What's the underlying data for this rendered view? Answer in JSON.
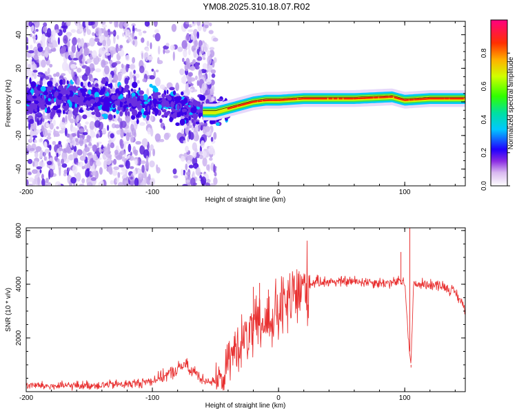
{
  "title": "YM08.2025.310.18.07.R02",
  "chart_data": [
    {
      "type": "heatmap",
      "name": "spectrogram",
      "xlabel": "Height of straight line (km)",
      "ylabel": "Frequency (Hz)",
      "xlim": [
        -200,
        148
      ],
      "ylim": [
        -50,
        48
      ],
      "xticks": [
        "-200",
        "-100",
        "0",
        "100"
      ],
      "yticks": [
        "-40",
        "-20",
        "0",
        "20",
        "40"
      ],
      "xtick_values": [
        -200,
        -100,
        0,
        100
      ],
      "ytick_values": [
        -40,
        -20,
        0,
        20,
        40
      ],
      "colorbar": {
        "label": "Normalized spectral amplitude",
        "range": [
          0,
          1
        ],
        "ticks": [
          "0.0",
          "0.2",
          "0.4",
          "0.6",
          "0.8"
        ],
        "tick_values": [
          0.0,
          0.2,
          0.4,
          0.6,
          0.8
        ]
      },
      "ridge": [
        {
          "x": -200,
          "f": 3
        },
        {
          "x": -150,
          "f": 2
        },
        {
          "x": -120,
          "f": 0
        },
        {
          "x": -90,
          "f": -1
        },
        {
          "x": -75,
          "f": -4
        },
        {
          "x": -60,
          "f": -6
        },
        {
          "x": -50,
          "f": -6
        },
        {
          "x": -40,
          "f": -4
        },
        {
          "x": -30,
          "f": -2
        },
        {
          "x": -20,
          "f": 0
        },
        {
          "x": -10,
          "f": 1
        },
        {
          "x": 0,
          "f": 1
        },
        {
          "x": 20,
          "f": 2
        },
        {
          "x": 60,
          "f": 2
        },
        {
          "x": 90,
          "f": 3
        },
        {
          "x": 100,
          "f": 1
        },
        {
          "x": 120,
          "f": 2
        },
        {
          "x": 148,
          "f": 2
        }
      ],
      "strong_segment_start_km": -40
    },
    {
      "type": "line",
      "name": "snr",
      "xlabel": "Height of straight line (km)",
      "ylabel": "SNR (10 * v/v)",
      "xlim": [
        -200,
        148
      ],
      "ylim": [
        0,
        6100
      ],
      "xticks": [
        "-200",
        "-100",
        "0",
        "100"
      ],
      "yticks": [
        "2000",
        "4000",
        "6000"
      ],
      "xtick_values": [
        -200,
        -100,
        0,
        100
      ],
      "ytick_values": [
        2000,
        4000,
        6000
      ],
      "line_color": "#e83030",
      "series": [
        {
          "name": "SNR",
          "points": [
            [
              -200,
              250
            ],
            [
              -180,
              200
            ],
            [
              -160,
              230
            ],
            [
              -140,
              250
            ],
            [
              -120,
              280
            ],
            [
              -110,
              320
            ],
            [
              -100,
              420
            ],
            [
              -90,
              600
            ],
            [
              -80,
              800
            ],
            [
              -75,
              1050
            ],
            [
              -70,
              750
            ],
            [
              -65,
              700
            ],
            [
              -60,
              450
            ],
            [
              -50,
              350
            ],
            [
              -45,
              500
            ],
            [
              -40,
              1050
            ],
            [
              -35,
              1550
            ],
            [
              -30,
              1800
            ],
            [
              -25,
              2000
            ],
            [
              -20,
              2250
            ],
            [
              -15,
              2450
            ],
            [
              -10,
              2600
            ],
            [
              -5,
              2750
            ],
            [
              0,
              2950
            ],
            [
              5,
              3150
            ],
            [
              10,
              3400
            ],
            [
              15,
              3650
            ],
            [
              20,
              3850
            ],
            [
              25,
              4000
            ],
            [
              30,
              4100
            ],
            [
              40,
              4100
            ],
            [
              50,
              4100
            ],
            [
              60,
              4100
            ],
            [
              70,
              4100
            ],
            [
              80,
              4050
            ],
            [
              90,
              4050
            ],
            [
              95,
              4100
            ],
            [
              100,
              4050
            ],
            [
              103,
              2000
            ],
            [
              105,
              1000
            ],
            [
              107,
              4000
            ],
            [
              110,
              4000
            ],
            [
              120,
              4000
            ],
            [
              130,
              3950
            ],
            [
              140,
              3700
            ],
            [
              148,
              3100
            ]
          ],
          "spikes": [
            {
              "x": -20,
              "y": 3900
            },
            {
              "x": -15,
              "y": 4050
            },
            {
              "x": -8,
              "y": 3800
            },
            {
              "x": 97,
              "y": 5200
            },
            {
              "x": 104,
              "y": 6100
            },
            {
              "x": 105,
              "y": 900
            }
          ]
        }
      ]
    }
  ],
  "colors": {
    "colormap": [
      "#ffffff",
      "#d9c8f2",
      "#8a5ee0",
      "#3a00e8",
      "#0000ff",
      "#00d0ff",
      "#00e070",
      "#40ff00",
      "#e8ff00",
      "#ffa000",
      "#ff2000",
      "#ff0070"
    ]
  }
}
